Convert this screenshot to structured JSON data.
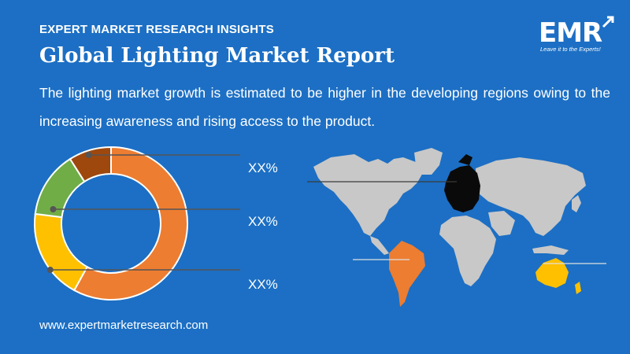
{
  "header": {
    "kicker": "EXPERT MARKET RESEARCH INSIGHTS",
    "title": "Global Lighting Market Report",
    "description": "The lighting market growth is estimated to be higher in the developing regions owing to the increasing awareness and rising access to the product."
  },
  "logo": {
    "text": "EMR",
    "tagline": "Leave it to the Experts!"
  },
  "footer": {
    "url": "www.expertmarketresearch.com"
  },
  "chart_data": {
    "type": "pie",
    "donut": true,
    "slices": [
      {
        "value": 58,
        "color": "#ed7d31"
      },
      {
        "value": 19,
        "color": "#ffc000"
      },
      {
        "value": 14,
        "color": "#70ad47"
      },
      {
        "value": 9,
        "color": "#9e480e"
      }
    ],
    "annotations": [
      "XX%",
      "XX%",
      "XX%"
    ]
  },
  "map": {
    "highlighted_regions": [
      {
        "region": "Europe",
        "color": "#0a0a0a"
      },
      {
        "region": "Latin America",
        "color": "#ed7d31"
      },
      {
        "region": "Oceania",
        "color": "#ffc000"
      }
    ],
    "base_color": "#c8c8c8"
  }
}
